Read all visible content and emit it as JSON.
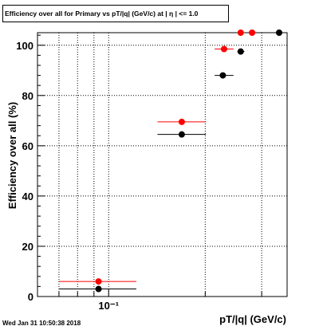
{
  "chart_data": {
    "type": "scatter",
    "title": "Efficiency over all for Primary vs pT/|q| (GeV/c) at | η | <= 1.0",
    "xlabel": "pT/|q| (GeV/c)",
    "ylabel": "Efficiency over all (%)",
    "x_scale": "log",
    "xlim": [
      0.06,
      0.36
    ],
    "ylim": [
      0,
      105
    ],
    "yticks": [
      "0",
      "20",
      "40",
      "60",
      "80",
      "100"
    ],
    "xtick_labels": [
      {
        "value": 0.1,
        "label": "10⁻¹"
      }
    ],
    "grid": true,
    "legend": "none",
    "colors": {
      "series_red": "#ff0000",
      "series_black": "#000000"
    },
    "series": [
      {
        "color": "red",
        "points": [
          {
            "x": 0.093,
            "xlo": 0.07,
            "xhi": 0.122,
            "y": 6
          },
          {
            "x": 0.169,
            "xlo": 0.142,
            "xhi": 0.201,
            "y": 69.5
          },
          {
            "x": 0.229,
            "xlo": 0.214,
            "xhi": 0.245,
            "y": 98.5
          },
          {
            "x": 0.258,
            "xlo": 0.252,
            "xhi": 0.265,
            "y": 105
          },
          {
            "x": 0.28,
            "xlo": 0.275,
            "xhi": 0.286,
            "y": 105
          }
        ]
      },
      {
        "color": "black",
        "points": [
          {
            "x": 0.093,
            "xlo": 0.07,
            "xhi": 0.122,
            "y": 3
          },
          {
            "x": 0.169,
            "xlo": 0.142,
            "xhi": 0.201,
            "y": 64.5
          },
          {
            "x": 0.227,
            "xlo": 0.214,
            "xhi": 0.245,
            "y": 88
          },
          {
            "x": 0.258,
            "xlo": 0.252,
            "xhi": 0.265,
            "y": 97.5
          },
          {
            "x": 0.34,
            "xlo": 0.336,
            "xhi": 0.345,
            "y": 105
          }
        ]
      }
    ]
  },
  "timestamp": "Wed Jan 31 10:50:38 2018"
}
